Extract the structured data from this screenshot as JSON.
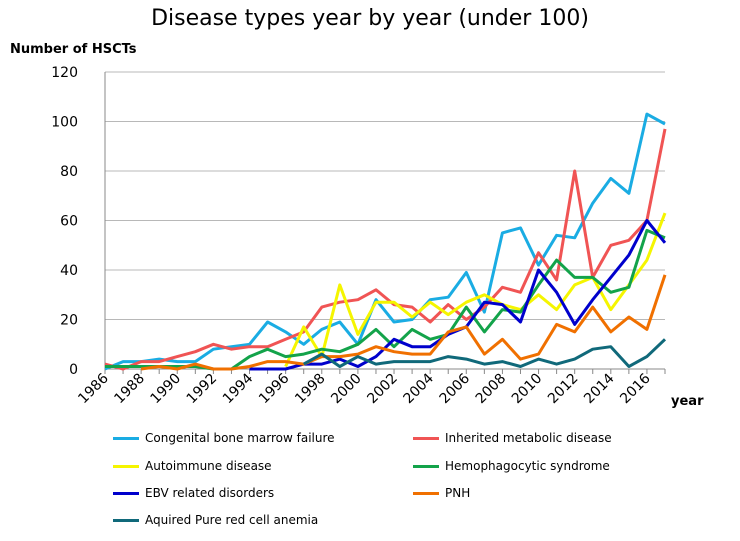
{
  "chart_data": {
    "type": "line",
    "title": "Disease types year by year (under 100)",
    "ylabel": "Number of HSCTs",
    "xlabel": "year",
    "ylim": [
      0,
      120
    ],
    "yticks": [
      0,
      20,
      40,
      60,
      80,
      100,
      120
    ],
    "xlim": [
      1986,
      2017
    ],
    "xticks": [
      1986,
      1988,
      1990,
      1992,
      1994,
      1996,
      1998,
      2000,
      2002,
      2004,
      2006,
      2008,
      2010,
      2012,
      2014,
      2016
    ],
    "x": [
      1986,
      1987,
      1988,
      1989,
      1990,
      1991,
      1992,
      1993,
      1994,
      1995,
      1996,
      1997,
      1998,
      1999,
      2000,
      2001,
      2002,
      2003,
      2004,
      2005,
      2006,
      2007,
      2008,
      2009,
      2010,
      2011,
      2012,
      2013,
      2014,
      2015,
      2016,
      2017
    ],
    "series": [
      {
        "name": "Congenital bone marrow failure",
        "color": "#1aace3",
        "values": [
          0,
          3,
          3,
          4,
          3,
          3,
          8,
          9,
          10,
          19,
          15,
          10,
          16,
          19,
          10,
          28,
          19,
          20,
          28,
          29,
          39,
          23,
          55,
          57,
          42,
          54,
          53,
          67,
          77,
          71,
          103,
          99
        ]
      },
      {
        "name": "Inherited metabolic disease",
        "color": "#f05454",
        "values": [
          2,
          0,
          3,
          3,
          5,
          7,
          10,
          8,
          9,
          9,
          12,
          15,
          25,
          27,
          28,
          32,
          26,
          25,
          19,
          26,
          20,
          25,
          33,
          31,
          47,
          36,
          80,
          37,
          50,
          52,
          60,
          97
        ]
      },
      {
        "name": "Autoimmune disease",
        "color": "#f5f500",
        "values": [
          null,
          null,
          null,
          null,
          null,
          null,
          null,
          null,
          null,
          null,
          1,
          17,
          5,
          34,
          14,
          27,
          27,
          21,
          27,
          22,
          27,
          30,
          26,
          24,
          30,
          24,
          34,
          37,
          24,
          34,
          44,
          63
        ]
      },
      {
        "name": "Hemophagocytic syndrome",
        "color": "#13a34a",
        "values": [
          1,
          1,
          1,
          1,
          1,
          1,
          0,
          0,
          5,
          8,
          5,
          6,
          8,
          7,
          10,
          16,
          9,
          16,
          12,
          14,
          25,
          15,
          24,
          23,
          34,
          44,
          37,
          37,
          31,
          33,
          56,
          53
        ]
      },
      {
        "name": "EBV related disorders",
        "color": "#0000cc",
        "values": [
          null,
          null,
          null,
          null,
          null,
          null,
          null,
          null,
          0,
          0,
          0,
          2,
          2,
          4,
          1,
          5,
          12,
          9,
          9,
          14,
          17,
          27,
          26,
          19,
          40,
          31,
          18,
          28,
          37,
          46,
          60,
          51
        ]
      },
      {
        "name": "PNH",
        "color": "#f07000",
        "values": [
          null,
          null,
          0,
          1,
          0,
          2,
          0,
          0,
          1,
          3,
          3,
          2,
          5,
          5,
          6,
          9,
          7,
          6,
          6,
          15,
          17,
          6,
          12,
          4,
          6,
          18,
          15,
          25,
          15,
          21,
          16,
          38
        ]
      },
      {
        "name": "Aquired Pure red cell anemia",
        "color": "#10697a",
        "values": [
          null,
          null,
          null,
          null,
          null,
          null,
          null,
          null,
          null,
          null,
          null,
          2,
          6,
          1,
          5,
          2,
          3,
          3,
          3,
          5,
          4,
          2,
          3,
          1,
          4,
          2,
          4,
          8,
          9,
          1,
          5,
          12
        ]
      }
    ]
  }
}
